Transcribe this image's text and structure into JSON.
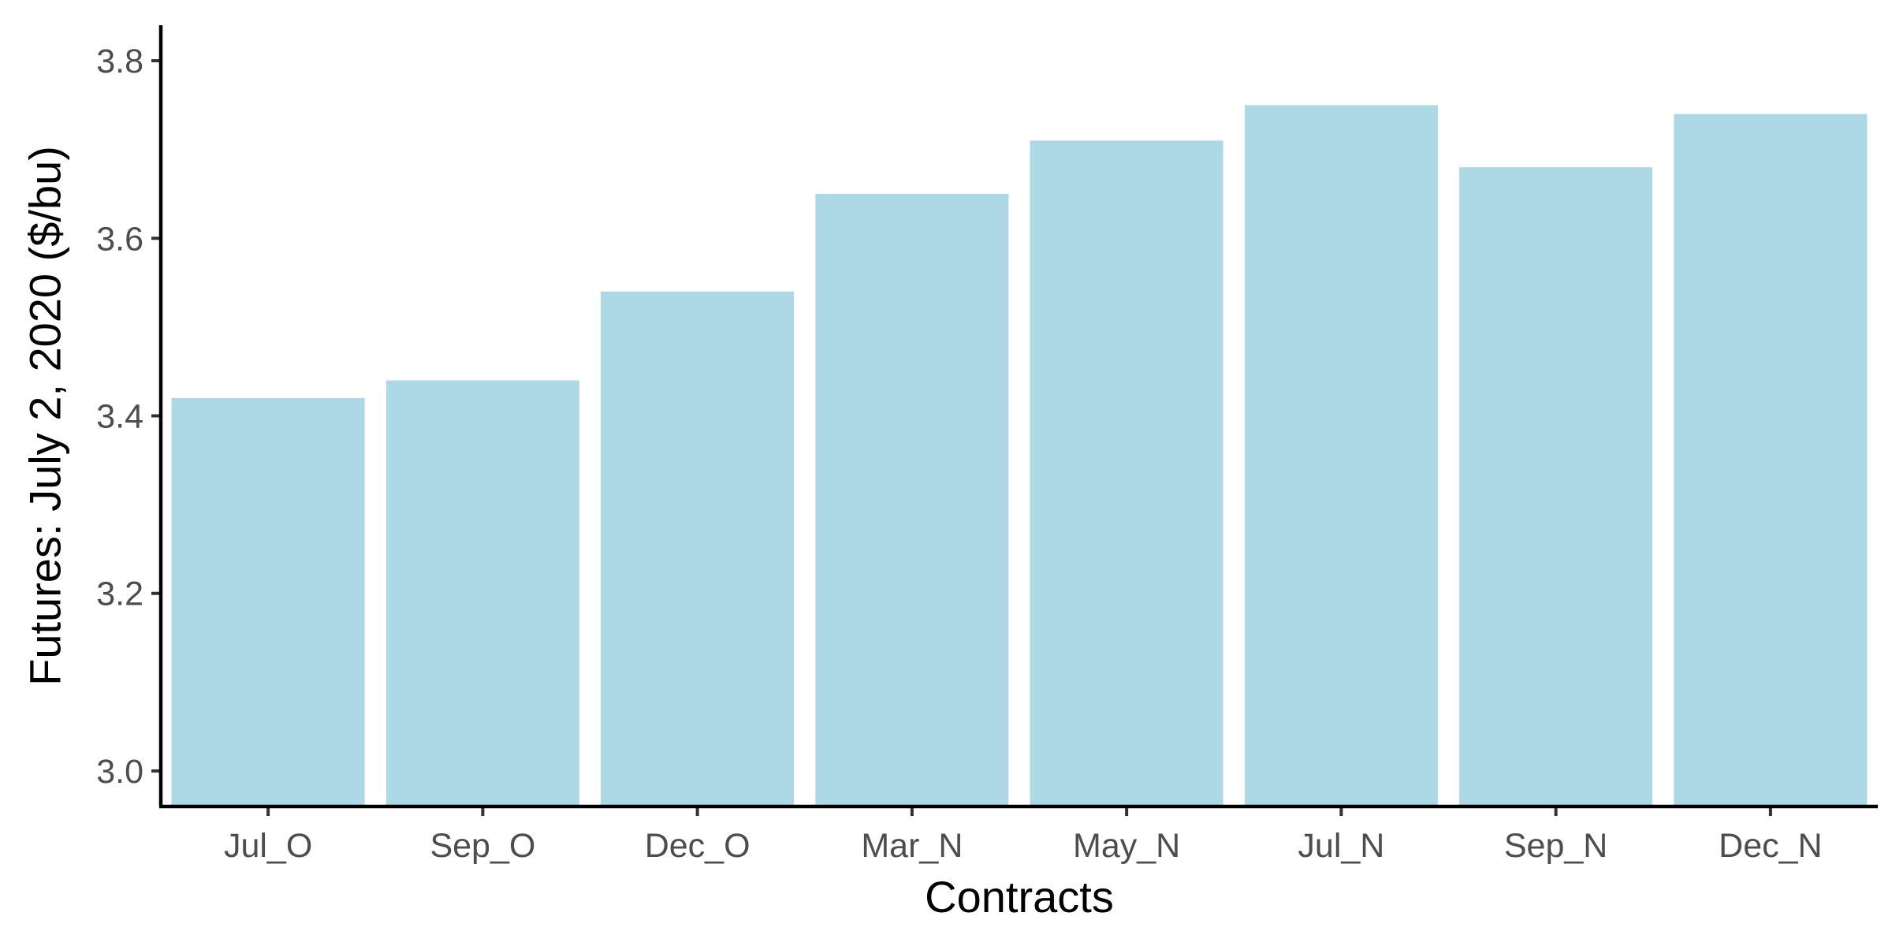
{
  "chart_data": {
    "type": "bar",
    "title": "",
    "xlabel": "Contracts",
    "ylabel": "Futures: July 2, 2020 ($/bu)",
    "categories": [
      "Jul_O",
      "Sep_O",
      "Dec_O",
      "Mar_N",
      "May_N",
      "Jul_N",
      "Sep_N",
      "Dec_N"
    ],
    "values": [
      3.42,
      3.44,
      3.54,
      3.65,
      3.71,
      3.75,
      3.68,
      3.74
    ],
    "ylim": [
      2.96,
      3.84
    ],
    "yticks": [
      3.0,
      3.2,
      3.4,
      3.6,
      3.8
    ],
    "ytick_labels": [
      "3.0",
      "3.2",
      "3.4",
      "3.6",
      "3.8"
    ],
    "grid": false,
    "legend": "none",
    "bar_color": "#add8e6"
  }
}
